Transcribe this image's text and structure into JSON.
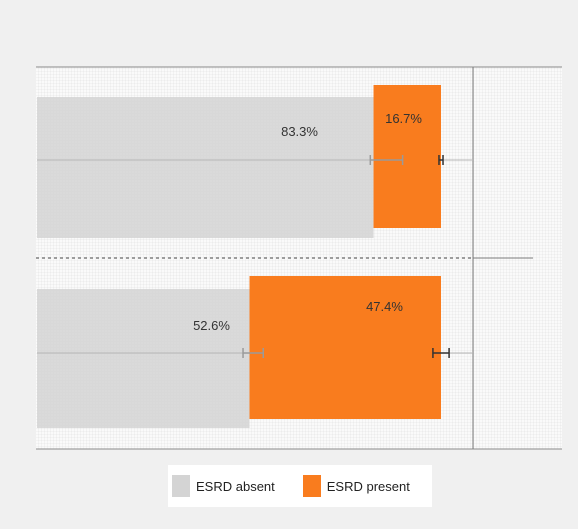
{
  "chart_data": {
    "type": "bar",
    "orientation": "horizontal",
    "stacked": true,
    "categories": [
      "",
      ""
    ],
    "series": [
      {
        "name": "ESRD absent",
        "color": "#d4d4d4",
        "values": [
          83.3,
          52.6
        ],
        "labels": [
          "83.3%",
          "52.6%"
        ],
        "error_bar_centers": [
          86.5,
          53.5
        ],
        "error_bar_half_width": [
          4.0,
          2.5
        ]
      },
      {
        "name": "ESRD present",
        "color": "#f97c1e",
        "values": [
          16.7,
          47.4
        ],
        "labels": [
          "16.7%",
          "47.4%"
        ],
        "error_bar_centers": [
          100,
          100
        ],
        "error_bar_half_width": [
          0.5,
          2.0
        ]
      }
    ],
    "xlim": [
      0,
      100
    ],
    "grid": true,
    "legend_position": "bottom"
  },
  "legend": {
    "absent_label": "ESRD absent",
    "present_label": "ESRD present"
  }
}
